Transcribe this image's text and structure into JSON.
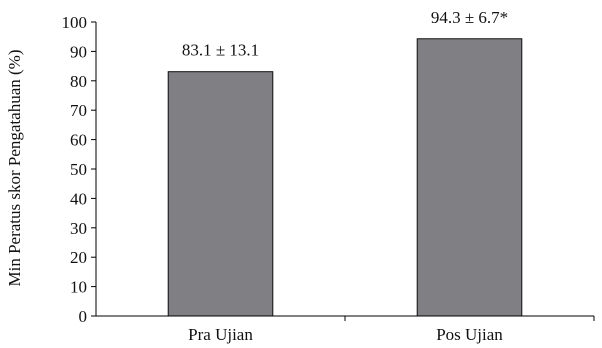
{
  "chart_data": {
    "type": "bar",
    "categories": [
      "Pra Ujian",
      "Pos Ujian"
    ],
    "values": [
      83.1,
      94.3
    ],
    "data_labels": [
      "83.1 ± 13.1",
      "94.3 ± 6.7*"
    ],
    "ylabel": "Min Peratus skor Pengatahuan (%)",
    "xlabel": "",
    "title": "",
    "ylim": [
      0,
      100
    ],
    "yticks": [
      "0",
      "10",
      "20",
      "30",
      "40",
      "50",
      "60",
      "70",
      "80",
      "90",
      "100"
    ],
    "grid": false,
    "legend": "none",
    "bar_color": "#7f7f84"
  }
}
